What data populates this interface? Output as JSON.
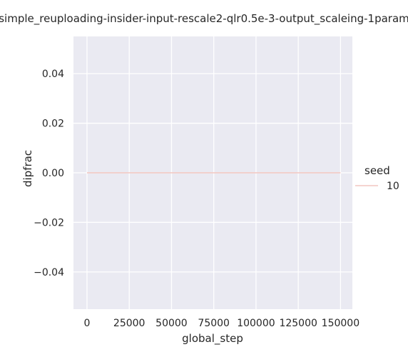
{
  "chart_data": {
    "type": "line",
    "title": "-simple_reuploading-insider-input-rescale2-qlr0.5e-3-output_scaleing-1param-",
    "xlabel": "global_step",
    "ylabel": "dipfrac",
    "xlim": [
      -8000,
      157000
    ],
    "ylim": [
      -0.055,
      0.055
    ],
    "xticks": [
      0,
      25000,
      50000,
      75000,
      100000,
      125000,
      150000
    ],
    "xtick_labels": [
      "0",
      "25000",
      "50000",
      "75000",
      "100000",
      "125000",
      "150000"
    ],
    "yticks": [
      -0.04,
      -0.02,
      0.0,
      0.02,
      0.04
    ],
    "ytick_labels": [
      "−0.04",
      "−0.02",
      "0.00",
      "0.02",
      "0.04"
    ],
    "grid": true,
    "legend": {
      "title": "seed",
      "placement": "right",
      "entries": [
        "10"
      ]
    },
    "series": [
      {
        "name": "10",
        "color": "#f2c6c0",
        "x": [
          0,
          150000
        ],
        "y": [
          0.0,
          0.0
        ]
      }
    ],
    "colors": {
      "plot_background": "#eaeaf2",
      "grid": "#ffffff",
      "text": "#262626"
    }
  }
}
